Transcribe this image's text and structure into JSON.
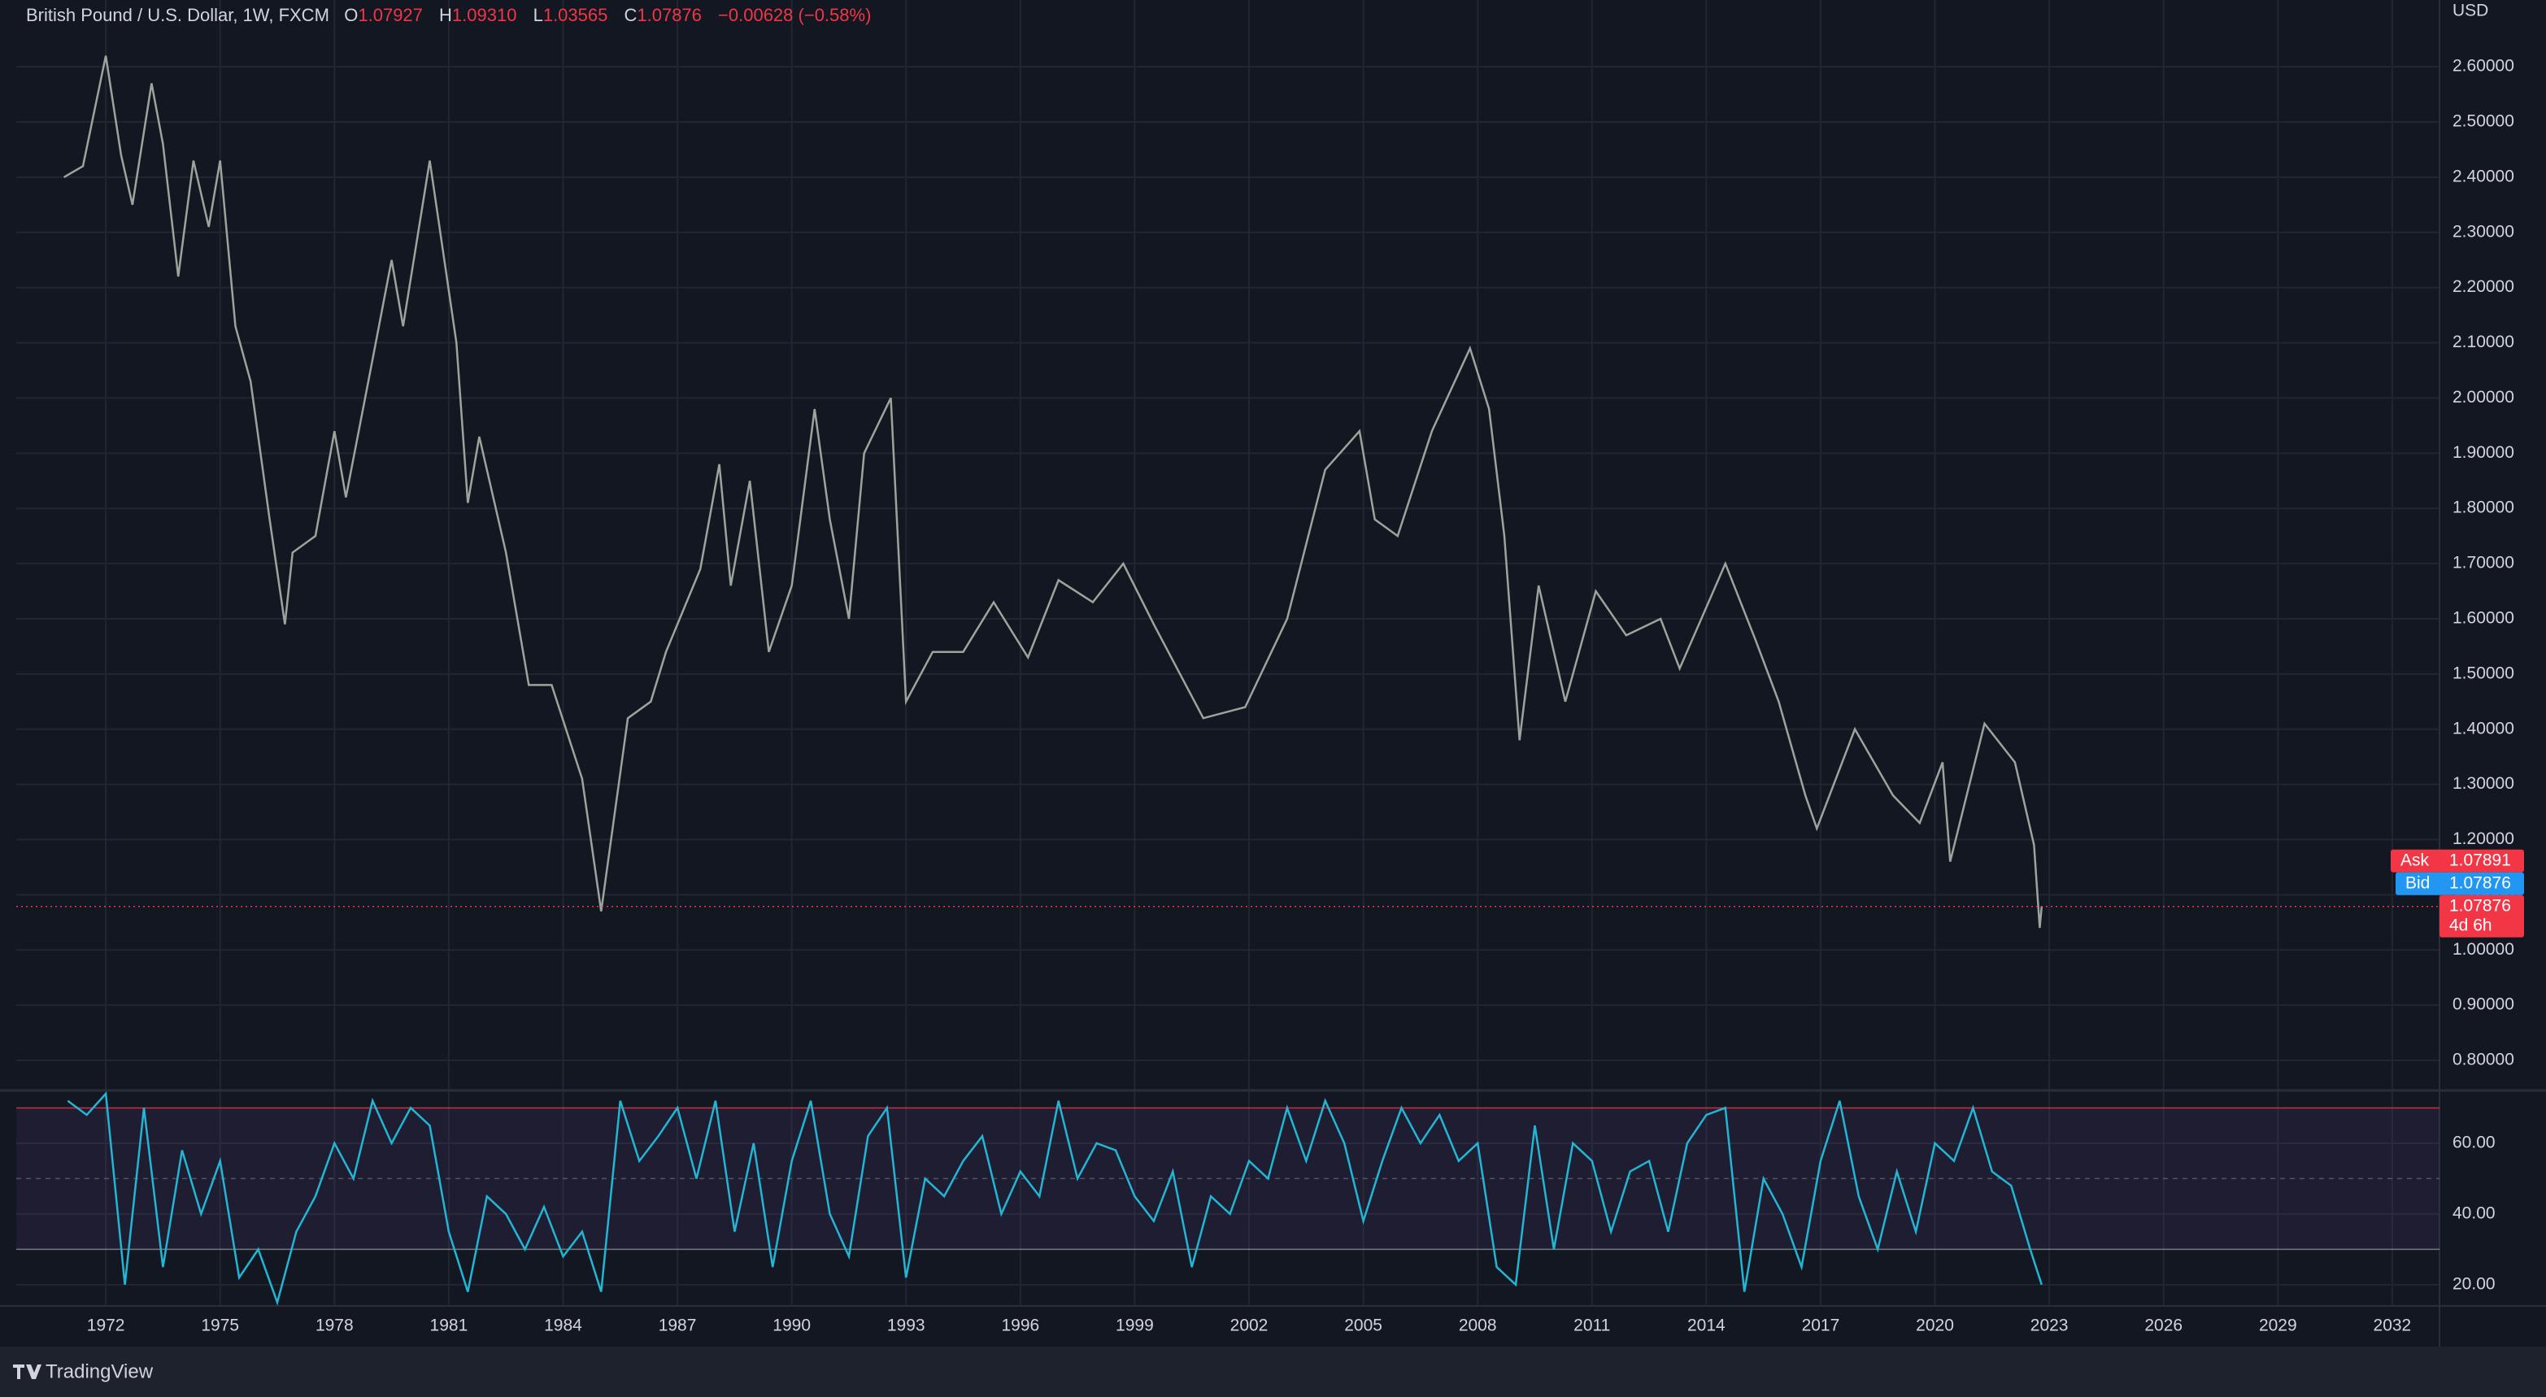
{
  "chart_data": [
    {
      "type": "line",
      "title": "British Pound / U.S. Dollar, 1W, FXCM",
      "ohlc": {
        "o_label": "O",
        "o": "1.07927",
        "h_label": "H",
        "h": "1.09310",
        "l_label": "L",
        "l": "1.03565",
        "c_label": "C",
        "c": "1.07876",
        "change": "−0.00628 (−0.58%)"
      },
      "y_axis_label": "USD",
      "quote": {
        "ask_label": "Ask",
        "ask": 1.07891,
        "bid_label": "Bid",
        "bid": 1.07876,
        "last": 1.07876,
        "countdown": "4d 6h"
      },
      "x": [
        1970.9,
        1971.4,
        1972.0,
        1972.4,
        1972.7,
        1973.2,
        1973.5,
        1973.9,
        1974.3,
        1974.7,
        1975.0,
        1975.4,
        1975.8,
        1976.3,
        1976.7,
        1976.9,
        1977.5,
        1978.0,
        1978.3,
        1979.0,
        1979.5,
        1979.8,
        1980.5,
        1981.2,
        1981.5,
        1981.8,
        1982.5,
        1983.1,
        1983.7,
        1984.5,
        1985.0,
        1985.7,
        1986.3,
        1986.7,
        1987.6,
        1988.1,
        1988.4,
        1988.9,
        1989.4,
        1990.0,
        1990.6,
        1991.0,
        1991.5,
        1991.9,
        1992.6,
        1993.0,
        1993.7,
        1994.5,
        1995.3,
        1996.2,
        1997.0,
        1997.9,
        1998.7,
        1999.5,
        2000.8,
        2001.9,
        2003.0,
        2004.0,
        2004.9,
        2005.3,
        2005.9,
        2006.8,
        2007.8,
        2008.3,
        2008.7,
        2009.1,
        2009.6,
        2010.3,
        2011.1,
        2011.9,
        2012.8,
        2013.3,
        2014.5,
        2015.3,
        2015.9,
        2016.6,
        2016.9,
        2017.9,
        2018.9,
        2019.6,
        2020.2,
        2020.4,
        2021.3,
        2022.1,
        2022.6,
        2022.75,
        2022.8
      ],
      "series": [
        {
          "name": "GBPUSD",
          "color": "#9aa59c",
          "values": [
            2.4,
            2.42,
            2.62,
            2.44,
            2.35,
            2.57,
            2.46,
            2.22,
            2.43,
            2.31,
            2.43,
            2.13,
            2.03,
            1.78,
            1.59,
            1.72,
            1.75,
            1.94,
            1.82,
            2.07,
            2.25,
            2.13,
            2.43,
            2.1,
            1.81,
            1.93,
            1.72,
            1.48,
            1.48,
            1.31,
            1.07,
            1.42,
            1.45,
            1.54,
            1.69,
            1.88,
            1.66,
            1.85,
            1.54,
            1.66,
            1.98,
            1.78,
            1.6,
            1.9,
            2.0,
            1.45,
            1.54,
            1.54,
            1.63,
            1.53,
            1.67,
            1.63,
            1.7,
            1.59,
            1.42,
            1.44,
            1.6,
            1.87,
            1.94,
            1.78,
            1.75,
            1.94,
            2.09,
            1.98,
            1.75,
            1.38,
            1.66,
            1.45,
            1.65,
            1.57,
            1.6,
            1.51,
            1.7,
            1.56,
            1.45,
            1.28,
            1.22,
            1.4,
            1.28,
            1.23,
            1.34,
            1.16,
            1.41,
            1.34,
            1.19,
            1.04,
            1.07876
          ]
        }
      ],
      "xlim": [
        1969.65,
        2033.24
      ],
      "xticks": [
        1972,
        1975,
        1978,
        1981,
        1984,
        1987,
        1990,
        1993,
        1996,
        1999,
        2002,
        2005,
        2008,
        2011,
        2014,
        2017,
        2020,
        2023,
        2026,
        2029,
        2032
      ],
      "ylim": [
        0.747,
        2.721
      ],
      "yticks": [
        {
          "value": 0.8,
          "label": "0.80000"
        },
        {
          "value": 0.9,
          "label": "0.90000"
        },
        {
          "value": 1.0,
          "label": "1.00000"
        },
        {
          "value": 1.1,
          "label": "1.10000"
        },
        {
          "value": 1.2,
          "label": "1.20000"
        },
        {
          "value": 1.3,
          "label": "1.30000"
        },
        {
          "value": 1.4,
          "label": "1.40000"
        },
        {
          "value": 1.5,
          "label": "1.50000"
        },
        {
          "value": 1.6,
          "label": "1.60000"
        },
        {
          "value": 1.7,
          "label": "1.70000"
        },
        {
          "value": 1.8,
          "label": "1.80000"
        },
        {
          "value": 1.9,
          "label": "1.90000"
        },
        {
          "value": 2.0,
          "label": "2.00000"
        },
        {
          "value": 2.1,
          "label": "2.10000"
        },
        {
          "value": 2.2,
          "label": "2.20000"
        },
        {
          "value": 2.3,
          "label": "2.30000"
        },
        {
          "value": 2.4,
          "label": "2.40000"
        },
        {
          "value": 2.5,
          "label": "2.50000"
        },
        {
          "value": 2.6,
          "label": "2.60000"
        }
      ],
      "grid": true
    },
    {
      "type": "line",
      "x": [
        1971.0,
        1971.5,
        1972.0,
        1972.5,
        1973.0,
        1973.5,
        1974.0,
        1974.5,
        1975.0,
        1975.5,
        1976.0,
        1976.5,
        1977.0,
        1977.5,
        1978.0,
        1978.5,
        1979.0,
        1979.5,
        1980.0,
        1980.5,
        1981.0,
        1981.5,
        1982.0,
        1982.5,
        1983.0,
        1983.5,
        1984.0,
        1984.5,
        1985.0,
        1985.5,
        1986.0,
        1986.5,
        1987.0,
        1987.5,
        1988.0,
        1988.5,
        1989.0,
        1989.5,
        1990.0,
        1990.5,
        1991.0,
        1991.5,
        1992.0,
        1992.5,
        1993.0,
        1993.5,
        1994.0,
        1994.5,
        1995.0,
        1995.5,
        1996.0,
        1996.5,
        1997.0,
        1997.5,
        1998.0,
        1998.5,
        1999.0,
        1999.5,
        2000.0,
        2000.5,
        2001.0,
        2001.5,
        2002.0,
        2002.5,
        2003.0,
        2003.5,
        2004.0,
        2004.5,
        2005.0,
        2005.5,
        2006.0,
        2006.5,
        2007.0,
        2007.5,
        2008.0,
        2008.5,
        2009.0,
        2009.5,
        2010.0,
        2010.5,
        2011.0,
        2011.5,
        2012.0,
        2012.5,
        2013.0,
        2013.5,
        2014.0,
        2014.5,
        2015.0,
        2015.5,
        2016.0,
        2016.5,
        2017.0,
        2017.5,
        2018.0,
        2018.5,
        2019.0,
        2019.5,
        2020.0,
        2020.5,
        2021.0,
        2021.5,
        2022.0,
        2022.5,
        2022.8
      ],
      "series": [
        {
          "name": "RSI",
          "color": "#22b6d4",
          "values": [
            72,
            68,
            74,
            20,
            70,
            25,
            58,
            40,
            55,
            22,
            30,
            15,
            35,
            45,
            60,
            50,
            72,
            60,
            70,
            65,
            35,
            18,
            45,
            40,
            30,
            42,
            28,
            35,
            18,
            72,
            55,
            62,
            70,
            50,
            72,
            35,
            60,
            25,
            55,
            72,
            40,
            28,
            62,
            70,
            22,
            50,
            45,
            55,
            62,
            40,
            52,
            45,
            72,
            50,
            60,
            58,
            45,
            38,
            52,
            25,
            45,
            40,
            55,
            50,
            70,
            55,
            72,
            60,
            38,
            55,
            70,
            60,
            68,
            55,
            60,
            25,
            20,
            65,
            30,
            60,
            55,
            35,
            52,
            55,
            35,
            60,
            68,
            70,
            18,
            50,
            40,
            25,
            55,
            72,
            45,
            30,
            52,
            35,
            60,
            55,
            70,
            52,
            48,
            30,
            20
          ]
        }
      ],
      "xlim": [
        1969.65,
        2033.24
      ],
      "ylim": [
        14,
        74.7
      ],
      "yticks": [
        {
          "value": 20,
          "label": "20.00"
        },
        {
          "value": 40,
          "label": "40.00"
        },
        {
          "value": 60,
          "label": "60.00"
        }
      ],
      "band": [
        30,
        70
      ],
      "midline": 50,
      "band_color": "#7e57c2",
      "grid": true
    },
    {
      "brand": "TradingView"
    }
  ]
}
